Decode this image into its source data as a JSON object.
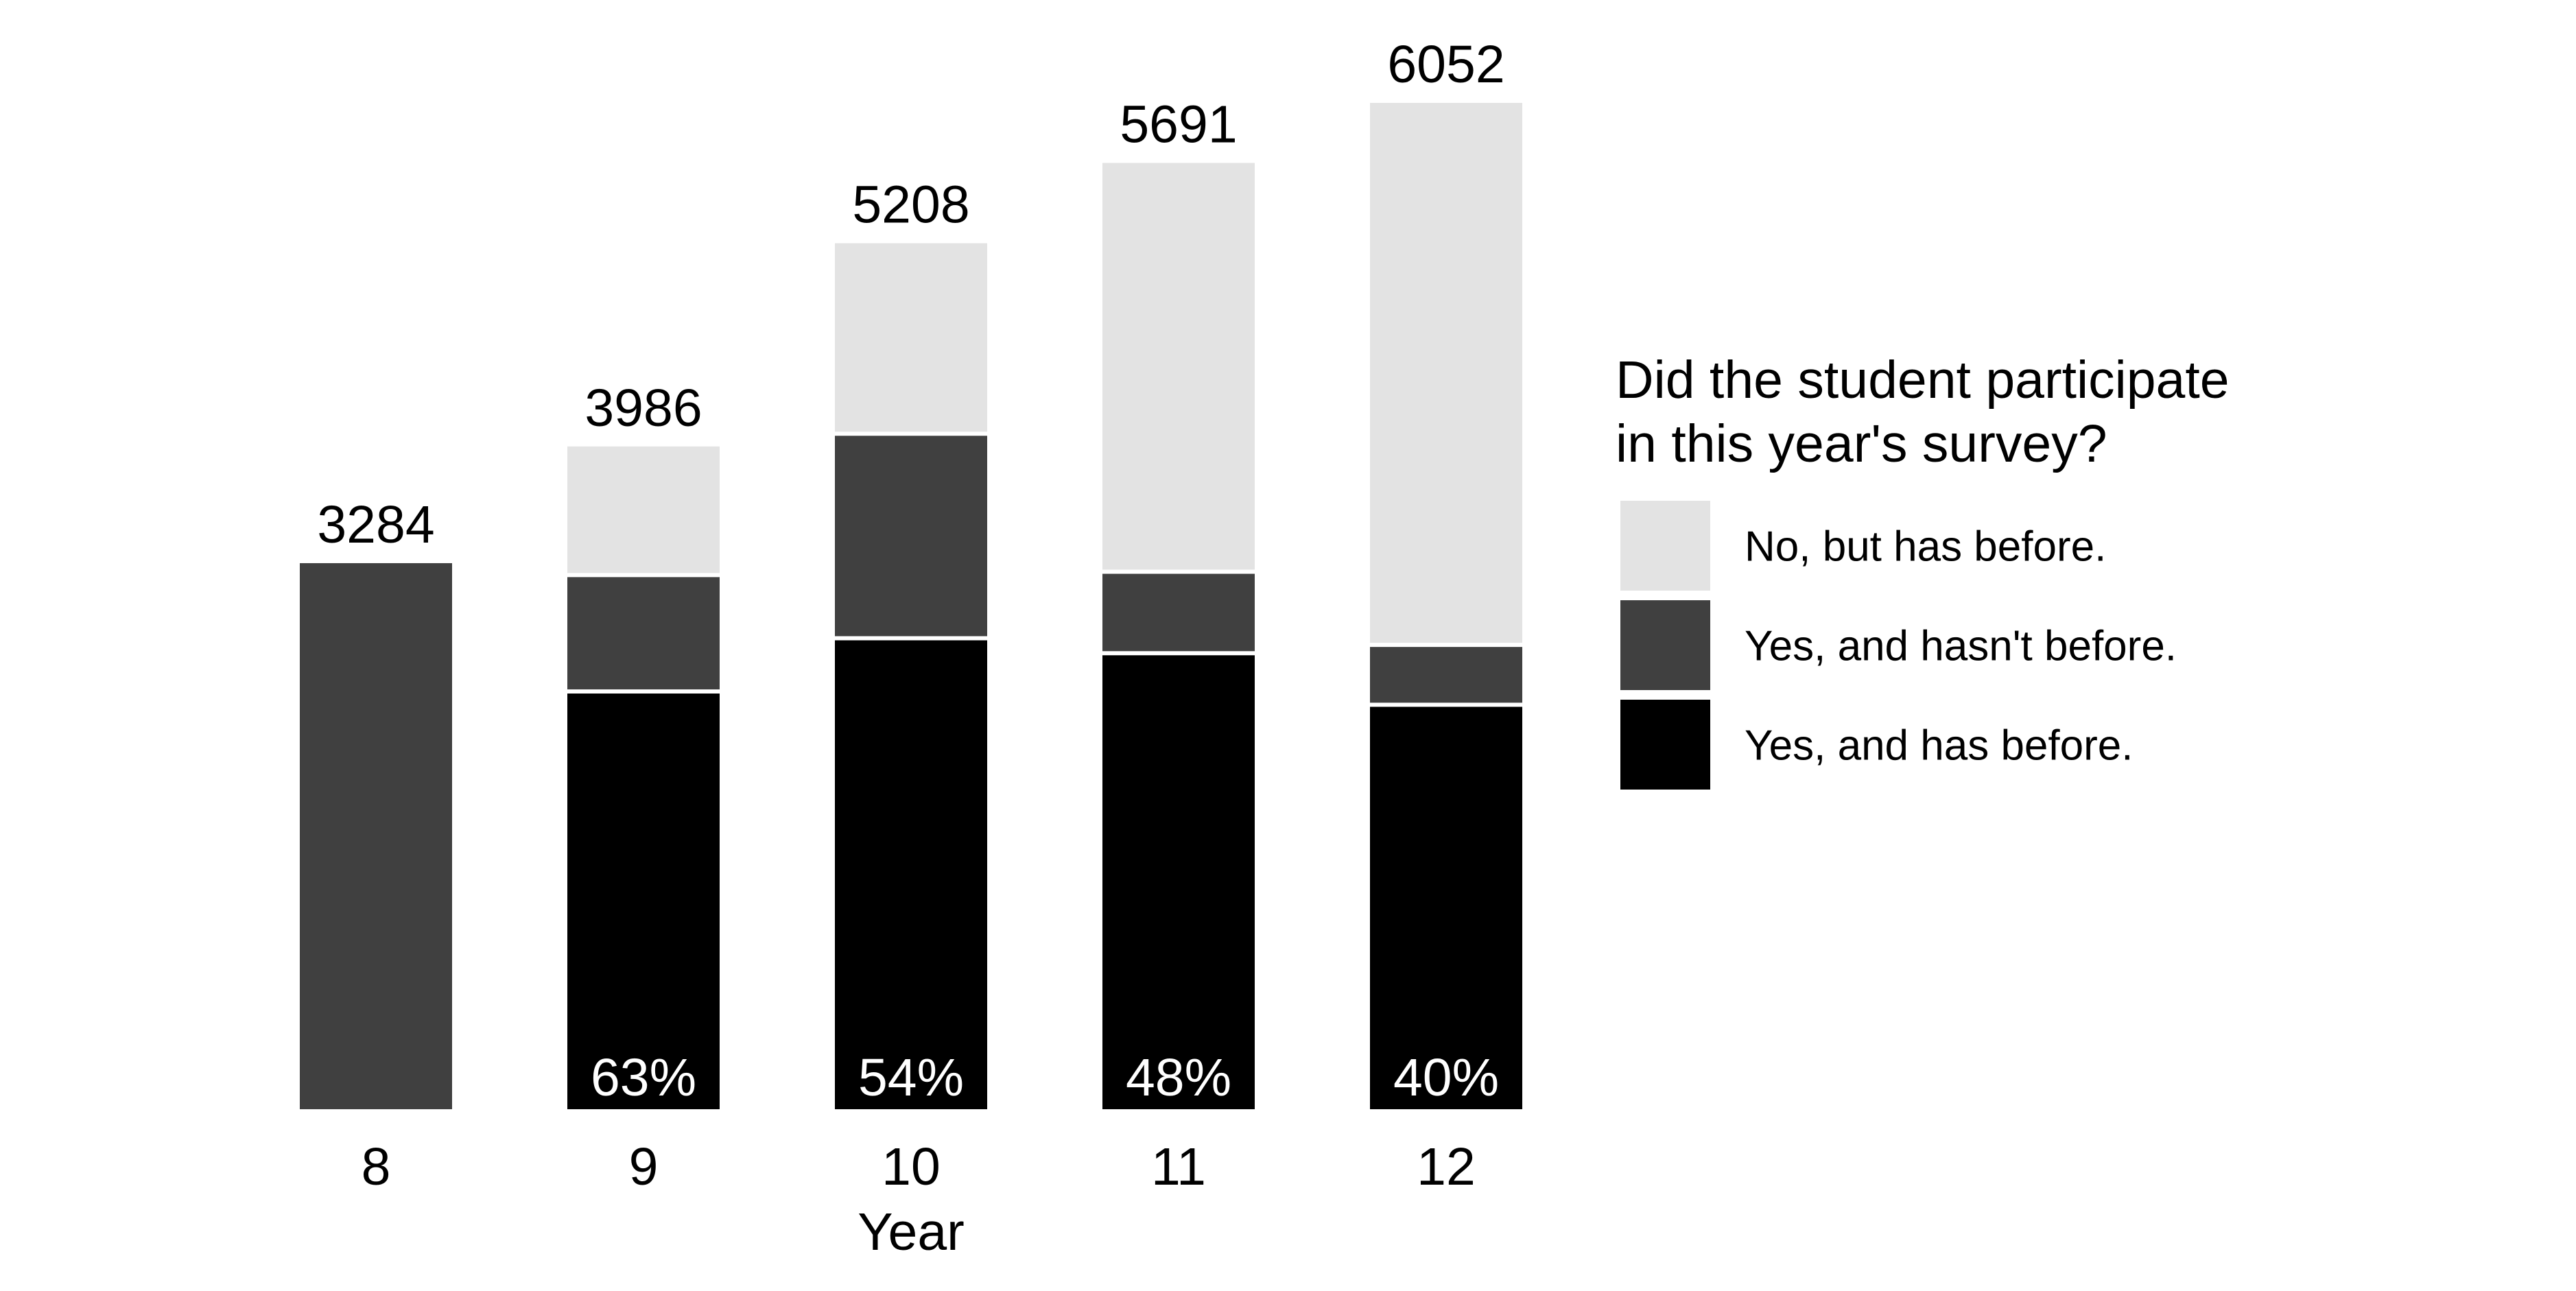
{
  "chart_data": {
    "type": "bar",
    "stacked": true,
    "xlabel": "Year",
    "ylabel": "",
    "categories": [
      "8",
      "9",
      "10",
      "11",
      "12"
    ],
    "totals": [
      3284,
      3986,
      5208,
      5691,
      6052
    ],
    "series": [
      {
        "name": "Yes, and has before.",
        "color": "#000000",
        "values": [
          0,
          2500,
          2820,
          2730,
          2420
        ]
      },
      {
        "name": "Yes, and hasn't before.",
        "color": "#404040",
        "values": [
          3284,
          700,
          1230,
          490,
          360
        ]
      },
      {
        "name": "No, but has before.",
        "color": "#e3e3e3",
        "values": [
          0,
          786,
          1158,
          2471,
          3272
        ]
      }
    ],
    "percent_labels": [
      "",
      "63%",
      "54%",
      "48%",
      "40%"
    ],
    "legend": {
      "title_lines": [
        "Did the student participate",
        "in this year's survey?"
      ],
      "order": [
        "No, but has before.",
        "Yes, and hasn't before.",
        "Yes, and has before."
      ],
      "placement": "right"
    },
    "grid": false
  }
}
